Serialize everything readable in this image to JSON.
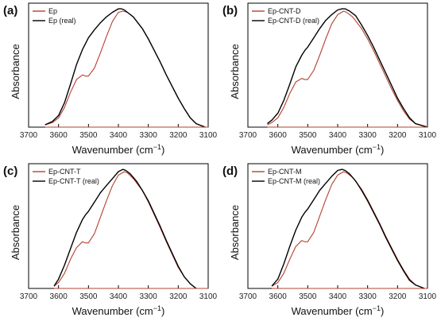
{
  "chart_data": [
    {
      "type": "line",
      "panel_label": "(a)",
      "xlabel": "Wavenumber (cm",
      "xlabel_sup": "−1",
      "ylabel": "Absorbance",
      "xlim": [
        3700,
        3100
      ],
      "x_reversed": true,
      "xticks": [
        "3700",
        "3600",
        "3500",
        "3400",
        "3300",
        "3200",
        "3100"
      ],
      "xtick_values": [
        3700,
        3600,
        3500,
        3400,
        3300,
        3200,
        3100
      ],
      "ylim": [
        0,
        1.0
      ],
      "legend": "top-left",
      "series": [
        {
          "name": "Ep",
          "color": "#b5402e",
          "x": [
            3645,
            3620,
            3600,
            3580,
            3560,
            3540,
            3520,
            3510,
            3500,
            3480,
            3460,
            3440,
            3420,
            3400,
            3385,
            3370,
            3350,
            3320,
            3300,
            3280,
            3260,
            3240,
            3220,
            3200,
            3180,
            3160,
            3140,
            3110
          ],
          "y": [
            0.02,
            0.04,
            0.08,
            0.17,
            0.3,
            0.41,
            0.45,
            0.44,
            0.44,
            0.51,
            0.64,
            0.78,
            0.91,
            0.99,
            1.0,
            0.99,
            0.95,
            0.85,
            0.76,
            0.66,
            0.56,
            0.45,
            0.35,
            0.25,
            0.16,
            0.08,
            0.03,
            0.0
          ]
        },
        {
          "name": "Ep (real)",
          "color": "#000000",
          "x": [
            3645,
            3620,
            3600,
            3580,
            3560,
            3540,
            3520,
            3510,
            3500,
            3480,
            3460,
            3440,
            3420,
            3400,
            3390,
            3380,
            3370,
            3350,
            3320,
            3300,
            3280,
            3260,
            3240,
            3220,
            3200,
            3180,
            3160,
            3140,
            3110
          ],
          "y": [
            0.02,
            0.05,
            0.1,
            0.21,
            0.37,
            0.54,
            0.67,
            0.72,
            0.77,
            0.84,
            0.9,
            0.95,
            0.99,
            1.02,
            1.02,
            1.01,
            0.99,
            0.95,
            0.85,
            0.76,
            0.66,
            0.56,
            0.45,
            0.35,
            0.25,
            0.16,
            0.08,
            0.03,
            0.0
          ]
        }
      ]
    },
    {
      "type": "line",
      "panel_label": "(b)",
      "xlabel": "Wavenumber (cm",
      "xlabel_sup": "−1",
      "ylabel": "Absorbance",
      "xlim": [
        3700,
        3100
      ],
      "x_reversed": true,
      "xticks": [
        "3700",
        "3600",
        "3500",
        "3400",
        "3300",
        "3200",
        "3100"
      ],
      "xtick_values": [
        3700,
        3600,
        3500,
        3400,
        3300,
        3200,
        3100
      ],
      "ylim": [
        0,
        1.0
      ],
      "legend": "top-left",
      "series": [
        {
          "name": "Ep-CNT-D",
          "color": "#b5402e",
          "x": [
            3635,
            3620,
            3600,
            3580,
            3560,
            3540,
            3520,
            3510,
            3500,
            3480,
            3460,
            3440,
            3420,
            3400,
            3380,
            3370,
            3350,
            3320,
            3300,
            3280,
            3260,
            3240,
            3220,
            3200,
            3180,
            3160,
            3140,
            3100
          ],
          "y": [
            0.02,
            0.04,
            0.08,
            0.17,
            0.29,
            0.39,
            0.42,
            0.41,
            0.41,
            0.49,
            0.62,
            0.76,
            0.89,
            0.97,
            1.0,
            0.99,
            0.95,
            0.85,
            0.76,
            0.66,
            0.55,
            0.44,
            0.33,
            0.23,
            0.14,
            0.07,
            0.03,
            0.0
          ]
        },
        {
          "name": "Ep-CNT-D (real)",
          "color": "#000000",
          "x": [
            3635,
            3620,
            3600,
            3580,
            3560,
            3540,
            3520,
            3510,
            3500,
            3480,
            3460,
            3440,
            3420,
            3400,
            3385,
            3375,
            3360,
            3340,
            3320,
            3300,
            3280,
            3260,
            3240,
            3220,
            3200,
            3180,
            3160,
            3140,
            3100
          ],
          "y": [
            0.03,
            0.06,
            0.12,
            0.23,
            0.37,
            0.52,
            0.62,
            0.66,
            0.69,
            0.77,
            0.85,
            0.92,
            0.97,
            1.01,
            1.02,
            1.02,
            1.0,
            0.96,
            0.88,
            0.79,
            0.69,
            0.58,
            0.47,
            0.36,
            0.25,
            0.16,
            0.08,
            0.03,
            0.0
          ]
        }
      ]
    },
    {
      "type": "line",
      "panel_label": "(c)",
      "xlabel": "Wavenumber (cm",
      "xlabel_sup": "−1",
      "ylabel": "Absorbance",
      "xlim": [
        3700,
        3100
      ],
      "x_reversed": true,
      "xticks": [
        "3700",
        "3600",
        "3500",
        "3400",
        "3300",
        "3200",
        "3100"
      ],
      "xtick_values": [
        3700,
        3600,
        3500,
        3400,
        3300,
        3200,
        3100
      ],
      "ylim": [
        0,
        1.0
      ],
      "legend": "top-left",
      "series": [
        {
          "name": "Ep-CNT-T",
          "color": "#b5402e",
          "x": [
            3615,
            3600,
            3580,
            3560,
            3540,
            3520,
            3510,
            3500,
            3480,
            3460,
            3440,
            3420,
            3400,
            3380,
            3370,
            3350,
            3320,
            3300,
            3280,
            3260,
            3240,
            3220,
            3200,
            3180,
            3160,
            3140
          ],
          "y": [
            0.02,
            0.05,
            0.13,
            0.25,
            0.35,
            0.4,
            0.39,
            0.39,
            0.47,
            0.61,
            0.75,
            0.88,
            0.97,
            1.0,
            0.99,
            0.94,
            0.84,
            0.74,
            0.63,
            0.52,
            0.4,
            0.29,
            0.18,
            0.1,
            0.04,
            0.0
          ]
        },
        {
          "name": "Ep-CNT-T (real)",
          "color": "#000000",
          "x": [
            3615,
            3600,
            3580,
            3560,
            3540,
            3520,
            3510,
            3500,
            3480,
            3460,
            3440,
            3420,
            3400,
            3385,
            3375,
            3360,
            3340,
            3320,
            3300,
            3280,
            3260,
            3240,
            3220,
            3200,
            3180,
            3160,
            3140
          ],
          "y": [
            0.02,
            0.08,
            0.2,
            0.34,
            0.48,
            0.59,
            0.63,
            0.66,
            0.74,
            0.82,
            0.88,
            0.94,
            1.0,
            1.02,
            1.01,
            0.98,
            0.92,
            0.84,
            0.75,
            0.64,
            0.53,
            0.41,
            0.3,
            0.19,
            0.1,
            0.04,
            0.0
          ]
        }
      ]
    },
    {
      "type": "line",
      "panel_label": "(d)",
      "xlabel": "Wavenumber (cm",
      "xlabel_sup": "−1",
      "ylabel": "Absorbance",
      "xlim": [
        3700,
        3100
      ],
      "x_reversed": true,
      "xticks": [
        "3700",
        "3600",
        "3500",
        "3400",
        "3300",
        "3200",
        "3100"
      ],
      "xtick_values": [
        3700,
        3600,
        3500,
        3400,
        3300,
        3200,
        3100
      ],
      "ylim": [
        0,
        1.0
      ],
      "legend": "top-left",
      "series": [
        {
          "name": "Ep-CNT-M",
          "color": "#b5402e",
          "x": [
            3620,
            3600,
            3580,
            3560,
            3540,
            3520,
            3510,
            3500,
            3480,
            3460,
            3440,
            3420,
            3400,
            3380,
            3370,
            3350,
            3320,
            3300,
            3280,
            3260,
            3240,
            3220,
            3200,
            3180,
            3160,
            3140,
            3110
          ],
          "y": [
            0.02,
            0.05,
            0.13,
            0.25,
            0.36,
            0.41,
            0.4,
            0.4,
            0.48,
            0.62,
            0.76,
            0.89,
            0.97,
            1.0,
            0.99,
            0.95,
            0.85,
            0.76,
            0.66,
            0.56,
            0.45,
            0.35,
            0.25,
            0.16,
            0.08,
            0.03,
            0.0
          ]
        },
        {
          "name": "Ep-CNT-M (real)",
          "color": "#000000",
          "x": [
            3620,
            3600,
            3580,
            3560,
            3540,
            3520,
            3510,
            3500,
            3480,
            3460,
            3440,
            3420,
            3400,
            3385,
            3375,
            3360,
            3340,
            3320,
            3300,
            3280,
            3260,
            3240,
            3220,
            3200,
            3180,
            3160,
            3140,
            3110
          ],
          "y": [
            0.02,
            0.08,
            0.21,
            0.36,
            0.5,
            0.61,
            0.65,
            0.68,
            0.76,
            0.84,
            0.9,
            0.96,
            1.01,
            1.02,
            1.01,
            0.98,
            0.92,
            0.84,
            0.75,
            0.65,
            0.55,
            0.44,
            0.34,
            0.24,
            0.15,
            0.07,
            0.03,
            0.0
          ]
        }
      ]
    }
  ]
}
